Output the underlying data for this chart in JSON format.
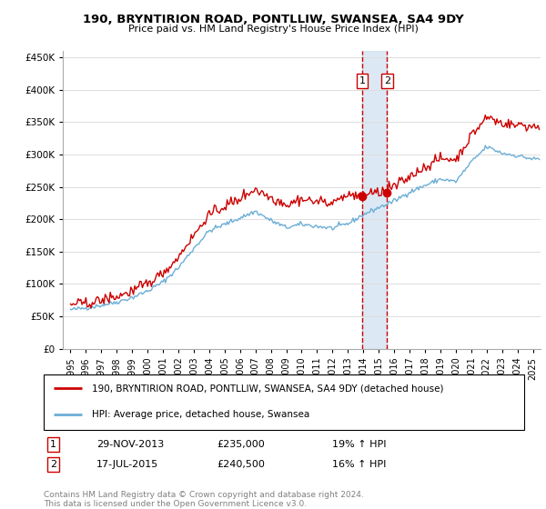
{
  "title": "190, BRYNTIRION ROAD, PONTLLIW, SWANSEA, SA4 9DY",
  "subtitle": "Price paid vs. HM Land Registry's House Price Index (HPI)",
  "legend_line1": "190, BRYNTIRION ROAD, PONTLLIW, SWANSEA, SA4 9DY (detached house)",
  "legend_line2": "HPI: Average price, detached house, Swansea",
  "footer": "Contains HM Land Registry data © Crown copyright and database right 2024.\nThis data is licensed under the Open Government Licence v3.0.",
  "sale1_date": "29-NOV-2013",
  "sale1_price": 235000,
  "sale1_label": "19% ↑ HPI",
  "sale2_date": "17-JUL-2015",
  "sale2_price": 240500,
  "sale2_label": "16% ↑ HPI",
  "sale1_year": 2013.92,
  "sale2_year": 2015.54,
  "hpi_color": "#6baed6",
  "price_color": "#cc0000",
  "marker_color": "#cc0000",
  "vline_color": "#cc0000",
  "shade_color": "#c6dbef",
  "ylim_min": 0,
  "ylim_max": 460000,
  "xlim_start": 1994.5,
  "xlim_end": 2025.5,
  "years_hpi": [
    1995,
    1996,
    1997,
    1998,
    1999,
    2000,
    2001,
    2002,
    2003,
    2004,
    2005,
    2006,
    2007,
    2008,
    2009,
    2010,
    2011,
    2012,
    2013,
    2014,
    2015,
    2016,
    2017,
    2018,
    2019,
    2020,
    2021,
    2022,
    2023,
    2024,
    2025
  ],
  "hpi_vals": [
    60000,
    63000,
    67000,
    72000,
    79000,
    89000,
    103000,
    125000,
    155000,
    182000,
    192000,
    202000,
    212000,
    198000,
    187000,
    192000,
    189000,
    186000,
    193000,
    207000,
    218000,
    228000,
    242000,
    252000,
    262000,
    258000,
    288000,
    312000,
    302000,
    298000,
    293000
  ],
  "ratio_years": [
    1995,
    2005,
    2010,
    2013,
    2014,
    2015,
    2016,
    2020,
    2025
  ],
  "ratios": [
    1.12,
    1.14,
    1.2,
    1.218,
    1.16,
    1.102,
    1.095,
    1.13,
    1.17
  ],
  "price_noise_scale": 3500,
  "hpi_noise_scale": 1800,
  "rand_seed": 42
}
